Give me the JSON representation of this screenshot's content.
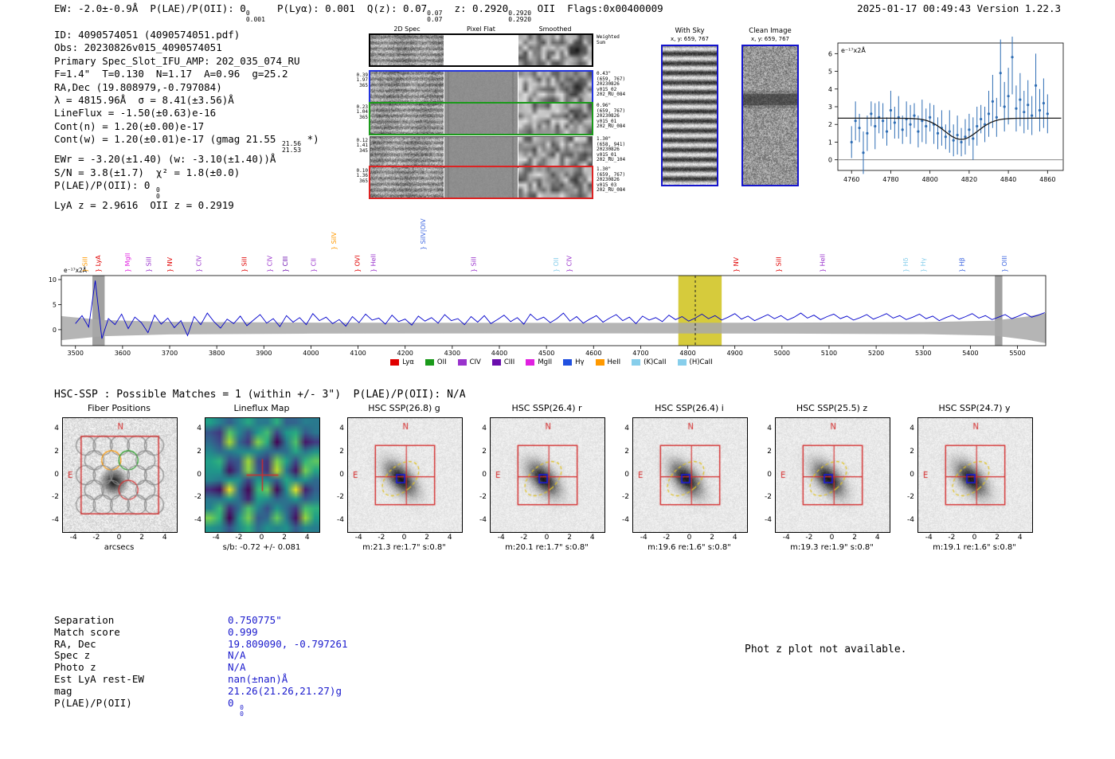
{
  "header": {
    "left_segments": [
      {
        "t": "EW: -2.0±-0.9Å  P(LAE)/P(OII): 0"
      },
      {
        "stack": [
          "0",
          "0.001"
        ]
      },
      {
        "t": "  P(Lyα): 0.001  Q(z): 0.07"
      },
      {
        "stack": [
          "0.07",
          "0.07"
        ]
      },
      {
        "t": "  z: 0.2920"
      },
      {
        "stack": [
          "0.2920",
          "0.2920"
        ]
      },
      {
        "t": " OII  Flags:0x00400009"
      }
    ],
    "right_text": "2025-01-17 00:49:43  Version 1.22.3"
  },
  "info": {
    "lines": [
      [
        {
          "t": "ID: 4090574051 (4090574051.pdf)"
        }
      ],
      [
        {
          "t": "Obs: 20230826v015_4090574051"
        }
      ],
      [
        {
          "t": "Primary Spec_Slot_IFU_AMP: 202_035_074_RU"
        }
      ],
      [
        {
          "t": "F=1.4\"  T=0.130  N=1.17  A=0.96  g=25.2"
        }
      ],
      [
        {
          "t": "RA,Dec (19.808979,-0.797084)"
        }
      ],
      [
        {
          "t": "λ = 4815.96Å  σ = 8.41(±3.56)Å"
        }
      ],
      [
        {
          "t": "LineFlux = -1.50(±0.63)e-16"
        }
      ],
      [
        {
          "t": "Cont(n) = 1.20(±0.00)e-17"
        }
      ],
      [
        {
          "t": "Cont(w) = 1.20(±0.01)e-17 (gmag 21.55 "
        },
        {
          "stack": [
            "21.56",
            "21.53"
          ]
        },
        {
          "t": " *)"
        }
      ],
      [
        {
          "t": "EWr = -3.20(±1.40) (w: -3.10(±1.40))Å"
        }
      ],
      [
        {
          "t": "S/N = 3.8(±1.7)  χ² = 1.8(±0.0)"
        }
      ],
      [
        {
          "t": "P(LAE)/P(OII): 0 "
        },
        {
          "stack": [
            "0",
            "0"
          ]
        }
      ],
      [
        {
          "t": "LyA z = 2.9616  OII z = 0.2919"
        }
      ]
    ]
  },
  "spec2d": {
    "col_headers": [
      "2D Spec",
      "Pixel Flat",
      "Smoothed"
    ],
    "rows": [
      {
        "left": [],
        "right": [
          "Weighted",
          "Sum"
        ],
        "border": "#000000",
        "bw": 2
      },
      {
        "left": [
          "0.39",
          "1.97",
          "365"
        ],
        "right": [
          "0.43\"",
          "(659, 767)",
          "20230826",
          "v015_02",
          "202_RU_084"
        ],
        "border": "#2233dd",
        "bw": 2
      },
      {
        "left": [
          "0.23",
          "1.04",
          "365"
        ],
        "right": [
          "0.96\"",
          "(659, 767)",
          "20230826",
          "v015_01",
          "202_RU_084"
        ],
        "border": "#1a9a1a",
        "bw": 2
      },
      {
        "left": [
          "0.12",
          "1.41",
          "345"
        ],
        "right": [
          "1.30\"",
          "(658, 941)",
          "20230826",
          "v015_01",
          "202_RU_104"
        ],
        "border": "#555555",
        "bw": 1
      },
      {
        "left": [
          "0.10",
          "1.36",
          "365"
        ],
        "right": [
          "1.30\"",
          "(659, 767)",
          "20230826",
          "v015_03",
          "202_RU_084"
        ],
        "border": "#dd2222",
        "bw": 2
      }
    ]
  },
  "withsky": {
    "title": "With Sky",
    "subtitle": "x, y: 659, 767"
  },
  "clean": {
    "title": "Clean Image",
    "subtitle": "x, y: 659, 767"
  },
  "hsc_line": "HSC-SSP : Possible Matches = 1 (within +/- 3\")  P(LAE)/P(OII): N/A",
  "cutouts": {
    "axis_ticks": [
      -4,
      -2,
      0,
      2,
      4
    ],
    "compass": {
      "n": "N",
      "e": "E"
    },
    "panels": [
      {
        "type": "fibers",
        "title": "Fiber Positions",
        "xlabel": "arcsecs"
      },
      {
        "type": "lineflux",
        "title": "Lineflux Map",
        "xlabel": "s/b: -0.72 +/- 0.081"
      },
      {
        "type": "hsc",
        "title": "HSC SSP(26.8) g",
        "xlabel": "m:21.3 re:1.7\" s:0.8\""
      },
      {
        "type": "hsc",
        "title": "HSC SSP(26.4) r",
        "xlabel": "m:20.1 re:1.7\" s:0.8\""
      },
      {
        "type": "hsc",
        "title": "HSC SSP(26.4) i",
        "xlabel": "m:19.6 re:1.6\" s:0.8\""
      },
      {
        "type": "hsc",
        "title": "HSC SSP(25.5) z",
        "xlabel": "m:19.3 re:1.9\" s:0.8\""
      },
      {
        "type": "hsc",
        "title": "HSC SSP(24.7) y",
        "xlabel": "m:19.1 re:1.6\" s:0.8\""
      }
    ]
  },
  "match_table": {
    "rows": [
      {
        "label": "Separation",
        "value": "0.750775\""
      },
      {
        "label": "Match score",
        "value": "0.999"
      },
      {
        "label": "RA, Dec",
        "value": "19.809090, -0.797261"
      },
      {
        "label": "Spec z",
        "value": "N/A"
      },
      {
        "label": "Photo z",
        "value": "N/A"
      },
      {
        "label": "Est LyA rest-EW",
        "value": "nan(±nan)Å"
      },
      {
        "label": "mag",
        "value": "21.26(21.26,21.27)g"
      },
      {
        "label": "P(LAE)/P(OII)",
        "segs": [
          {
            "t": "0 "
          },
          {
            "stack": [
              "0",
              "0"
            ]
          }
        ]
      }
    ]
  },
  "photz_note": "Phot z plot not available.",
  "chart_data": [
    {
      "id": "line-fit-zoom",
      "type": "scatter",
      "annotation": "e⁻¹⁷x2Å",
      "x_start": 4760,
      "x_step": 2,
      "y": [
        1.0,
        2.2,
        1.8,
        0.4,
        1.5,
        2.6,
        1.9,
        2.4,
        2.2,
        1.6,
        2.8,
        2.1,
        2.4,
        1.7,
        2.3,
        2.0,
        2.5,
        1.6,
        2.2,
        1.9,
        2.4,
        2.0,
        1.5,
        1.8,
        1.3,
        1.6,
        1.1,
        1.4,
        1.0,
        1.3,
        1.7,
        1.2,
        1.9,
        2.3,
        2.0,
        2.6,
        3.3,
        2.4,
        4.9,
        3.0,
        3.6,
        5.8,
        2.9,
        3.4,
        2.7,
        3.1,
        2.5,
        4.2,
        2.8,
        3.2,
        2.6
      ],
      "yerr": [
        0.9,
        1.1,
        0.8,
        1.2,
        1.0,
        0.7,
        1.3,
        0.9,
        1.0,
        0.8,
        1.1,
        0.9,
        1.2,
        0.8,
        1.0,
        1.1,
        0.7,
        0.9,
        1.2,
        1.0,
        0.8,
        1.1,
        0.9,
        1.0,
        0.7,
        1.2,
        0.9,
        1.1,
        0.8,
        1.0,
        0.9,
        1.2,
        1.1,
        0.8,
        1.0,
        1.3,
        1.5,
        1.1,
        1.9,
        1.4,
        1.6,
        2.1,
        1.3,
        1.5,
        1.2,
        1.4,
        1.1,
        1.8,
        1.2,
        1.4,
        1.1
      ],
      "fit": {
        "continuum": 2.35,
        "amplitude": -1.2,
        "center": 4815.96,
        "sigma": 8.41
      },
      "xlim": [
        4753,
        4868
      ],
      "ylim": [
        -0.6,
        6.6
      ],
      "xticks": [
        4760,
        4780,
        4800,
        4820,
        4840,
        4860
      ],
      "yticks": [
        0,
        1,
        2,
        3,
        4,
        5,
        6
      ],
      "point_color": "#2e6db4",
      "fit_color": "#1a1a1a"
    },
    {
      "id": "full-spectrum",
      "type": "line",
      "annotation": "e⁻¹⁷x2Å",
      "x_start": 3500,
      "x_step": 14,
      "values": [
        1.2,
        2.8,
        0.5,
        9.8,
        -1.8,
        2.2,
        1.0,
        3.1,
        0.2,
        2.5,
        1.4,
        -0.6,
        2.9,
        1.1,
        2.3,
        0.4,
        1.8,
        -1.2,
        2.6,
        1.0,
        3.3,
        1.6,
        0.3,
        2.1,
        1.2,
        2.7,
        0.8,
        1.9,
        3.0,
        1.3,
        2.2,
        0.6,
        2.8,
        1.5,
        2.4,
        1.0,
        3.2,
        1.8,
        2.5,
        1.2,
        2.0,
        0.7,
        2.6,
        1.4,
        3.1,
        1.9,
        2.3,
        1.1,
        2.9,
        1.6,
        2.1,
        0.9,
        2.7,
        1.7,
        2.4,
        1.3,
        3.0,
        1.8,
        2.2,
        1.0,
        2.6,
        1.5,
        2.8,
        1.2,
        2.0,
        2.9,
        1.6,
        2.4,
        1.1,
        3.1,
        1.9,
        2.5,
        1.4,
        2.2,
        3.3,
        1.7,
        2.6,
        1.3,
        2.1,
        2.8,
        1.5,
        2.3,
        3.0,
        1.8,
        2.5,
        1.2,
        2.7,
        1.9,
        2.4,
        1.6,
        2.9,
        2.0,
        2.6,
        1.7,
        2.3,
        3.1,
        2.2,
        2.8,
        1.9,
        2.5,
        3.2,
        2.1,
        2.7,
        1.8,
        2.4,
        3.0,
        2.2,
        2.8,
        1.9,
        2.5,
        3.3,
        2.3,
        2.9,
        2.0,
        2.6,
        3.1,
        2.2,
        2.7,
        1.9,
        2.4,
        3.0,
        2.1,
        2.6,
        3.2,
        2.3,
        2.8,
        2.0,
        2.5,
        3.1,
        2.2,
        2.7,
        1.8,
        2.4,
        2.9,
        2.1,
        2.6,
        3.2,
        2.3,
        2.8,
        2.0,
        2.5,
        3.0,
        2.2,
        2.7,
        3.3,
        2.5,
        2.9,
        3.4
      ],
      "line_color": "#0000cc",
      "xlim": [
        3470,
        5560
      ],
      "ylim": [
        -3.2,
        10.8
      ],
      "xticks": [
        3500,
        3600,
        3700,
        3800,
        3900,
        4000,
        4100,
        4200,
        4300,
        4400,
        4500,
        4600,
        4700,
        4800,
        4900,
        5000,
        5100,
        5200,
        5300,
        5400,
        5500
      ],
      "yticks": [
        0,
        5,
        10
      ],
      "error_band": {
        "center": 0.3,
        "x": [
          3470,
          3560,
          3700,
          4000,
          4500,
          5000,
          5300,
          5450,
          5520,
          5560
        ],
        "half": [
          2.4,
          1.6,
          1.25,
          1.1,
          1.05,
          1.1,
          1.2,
          1.5,
          2.3,
          3.0
        ]
      },
      "highlight_band": {
        "x0": 4780,
        "x1": 4872,
        "color": "#d4c832",
        "line_x": 4816
      },
      "gray_bands": [
        [
          3536,
          3562
        ],
        [
          5452,
          5468
        ]
      ],
      "line_labels": [
        {
          "label": "SiII",
          "wave": 3520,
          "color": "#ff9900"
        },
        {
          "label": "LyA",
          "wave": 3548,
          "color": "#e00000"
        },
        {
          "label": "MgII",
          "wave": 3610,
          "color": "#e020e0"
        },
        {
          "label": "SiII",
          "wave": 3655,
          "color": "#9932cc"
        },
        {
          "label": "NV",
          "wave": 3700,
          "color": "#e00000"
        },
        {
          "label": "CIV",
          "wave": 3762,
          "color": "#9932cc"
        },
        {
          "label": "SiII",
          "wave": 3858,
          "color": "#e00000"
        },
        {
          "label": "CIV",
          "wave": 3912,
          "color": "#9932cc"
        },
        {
          "label": "CIII",
          "wave": 3945,
          "color": "#6a0dad"
        },
        {
          "label": "CII",
          "wave": 4005,
          "color": "#9932cc"
        },
        {
          "label": "SiIV",
          "wave": 4048,
          "color": "#ff9900",
          "tall": true
        },
        {
          "label": "OVI",
          "wave": 4098,
          "color": "#e00000"
        },
        {
          "label": "HeII",
          "wave": 4132,
          "color": "#9932cc"
        },
        {
          "label": "SiIV|OIV",
          "wave": 4238,
          "color": "#4169e1",
          "tall": true
        },
        {
          "label": "SiII",
          "wave": 4345,
          "color": "#9932cc"
        },
        {
          "label": "OII",
          "wave": 4520,
          "color": "#87ceeb"
        },
        {
          "label": "CIV",
          "wave": 4548,
          "color": "#9932cc"
        },
        {
          "label": "NV",
          "wave": 4902,
          "color": "#e00000"
        },
        {
          "label": "SiII",
          "wave": 4993,
          "color": "#e00000"
        },
        {
          "label": "HeII",
          "wave": 5086,
          "color": "#9932cc"
        },
        {
          "label": "Hδ",
          "wave": 5262,
          "color": "#87ceeb"
        },
        {
          "label": "Hγ",
          "wave": 5300,
          "color": "#87ceeb"
        },
        {
          "label": "Hβ",
          "wave": 5382,
          "color": "#4169e1"
        },
        {
          "label": "OIII",
          "wave": 5472,
          "color": "#4169e1"
        }
      ],
      "legend": [
        {
          "label": "Lyα",
          "color": "#e00000"
        },
        {
          "label": "OII",
          "color": "#1a9a1a"
        },
        {
          "label": "CIV",
          "color": "#9932cc"
        },
        {
          "label": "CIII",
          "color": "#6a0dad"
        },
        {
          "label": "MgII",
          "color": "#e020e0"
        },
        {
          "label": "Hγ",
          "color": "#2050e0"
        },
        {
          "label": "HeII",
          "color": "#ff9900"
        },
        {
          "label": "(K)CaII",
          "color": "#87ceeb"
        },
        {
          "label": "(H)CaII",
          "color": "#87ceeb"
        }
      ]
    }
  ]
}
